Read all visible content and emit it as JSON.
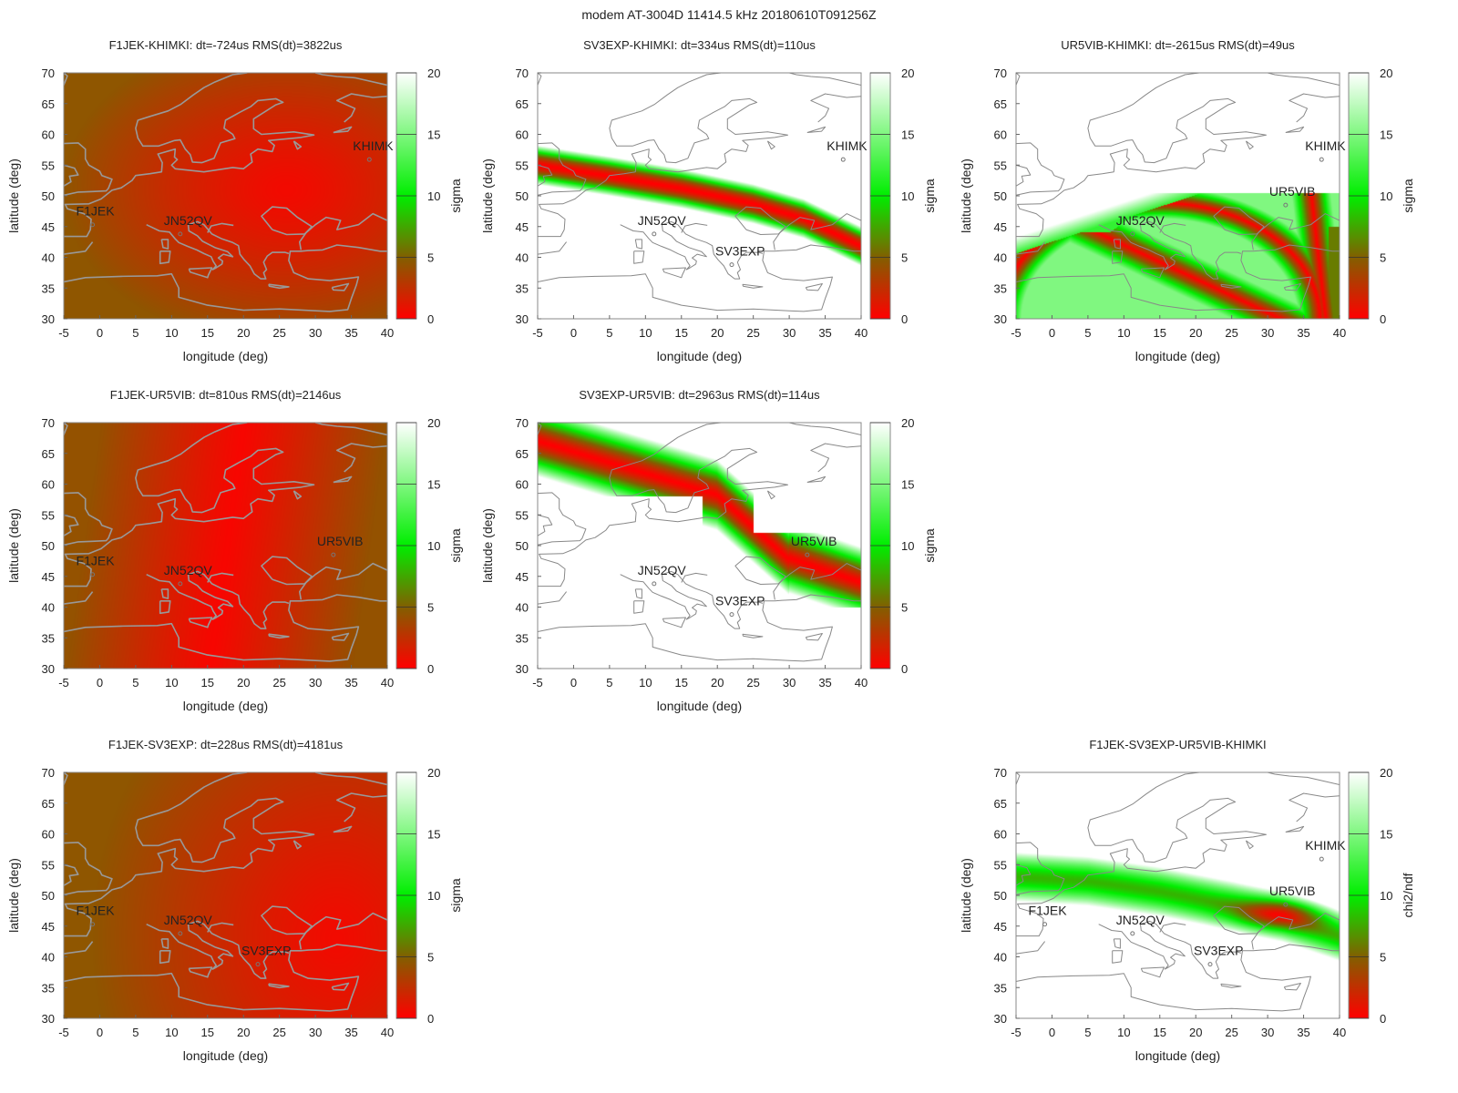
{
  "page": {
    "title": "modem AT-3004D 11414.5 kHz 20180610T091256Z"
  },
  "stations": {
    "F1JEK": {
      "lon": -1.0,
      "lat": 45.3
    },
    "JN52QV": {
      "lon": 11.2,
      "lat": 43.8
    },
    "SV3EXP": {
      "lon": 22.0,
      "lat": 38.8
    },
    "UR5VIB": {
      "lon": 32.5,
      "lat": 48.5
    },
    "KHIMKI": {
      "lon": 37.5,
      "lat": 55.9
    }
  },
  "colors": {
    "low": "#ff0000",
    "mid": "#00ee00",
    "high": "#ffffff",
    "coast": "#999999",
    "marker": "#777777"
  },
  "chart_data": [
    {
      "type": "heatmap",
      "id": "p11",
      "title": "F1JEK-KHIMKI:  dt=-724us RMS(dt)=3822us",
      "xlabel": "longitude (deg)",
      "ylabel": "latitude (deg)",
      "cblabel": "sigma",
      "xlim": [
        -5,
        40
      ],
      "ylim": [
        30,
        70
      ],
      "clim": [
        0,
        20
      ],
      "xticks": [
        "-5",
        "0",
        "5",
        "10",
        "15",
        "20",
        "25",
        "30",
        "35",
        "40"
      ],
      "yticks": [
        "30",
        "35",
        "40",
        "45",
        "50",
        "55",
        "60",
        "65",
        "70"
      ],
      "cticks": [
        "0",
        "5",
        "10",
        "15",
        "20"
      ],
      "labels": [
        "F1JEK",
        "JN52QV",
        "KHIMK"
      ],
      "markers": [
        "F1JEK",
        "JN52QV",
        "KHIMKI"
      ],
      "field": "broad",
      "coast": "gray"
    },
    {
      "type": "heatmap",
      "id": "p12",
      "title": "SV3EXP-KHIMKI:  dt=334us RMS(dt)=110us",
      "xlabel": "longitude (deg)",
      "ylabel": "latitude (deg)",
      "cblabel": "sigma",
      "xlim": [
        -5,
        40
      ],
      "ylim": [
        30,
        70
      ],
      "clim": [
        0,
        20
      ],
      "xticks": [
        "-5",
        "0",
        "5",
        "10",
        "15",
        "20",
        "25",
        "30",
        "35",
        "40"
      ],
      "yticks": [
        "30",
        "35",
        "40",
        "45",
        "50",
        "55",
        "60",
        "65",
        "70"
      ],
      "cticks": [
        "0",
        "5",
        "10",
        "15",
        "20"
      ],
      "labels": [
        "JN52QV",
        "SV3EXP",
        "KHIMK"
      ],
      "markers": [
        "JN52QV",
        "SV3EXP",
        "KHIMKI"
      ],
      "field": "band",
      "coast": "outline",
      "band": [
        [
          -5,
          55.0
        ],
        [
          5,
          53.2
        ],
        [
          15,
          51.2
        ],
        [
          25,
          48.7
        ],
        [
          32,
          46.3
        ],
        [
          40,
          41.8
        ]
      ],
      "band_halfwidth": 3.2
    },
    {
      "type": "heatmap",
      "id": "p13",
      "title": "UR5VIB-KHIMKI:  dt=-2615us RMS(dt)=49us",
      "xlabel": "longitude (deg)",
      "ylabel": "latitude (deg)",
      "cblabel": "sigma",
      "xlim": [
        -5,
        40
      ],
      "ylim": [
        30,
        70
      ],
      "clim": [
        0,
        20
      ],
      "xticks": [
        "-5",
        "0",
        "5",
        "10",
        "15",
        "20",
        "25",
        "30",
        "35",
        "40"
      ],
      "yticks": [
        "30",
        "35",
        "40",
        "45",
        "50",
        "55",
        "60",
        "65",
        "70"
      ],
      "cticks": [
        "0",
        "5",
        "10",
        "15",
        "20"
      ],
      "labels": [
        "JN52QV",
        "UR5VIB",
        "KHIMK"
      ],
      "markers": [
        "JN52QV",
        "UR5VIB",
        "KHIMKI"
      ],
      "field": "arch",
      "coast": "outline"
    },
    {
      "type": "heatmap",
      "id": "p21",
      "title": "F1JEK-UR5VIB:  dt=810us RMS(dt)=2146us",
      "xlabel": "longitude (deg)",
      "ylabel": "latitude (deg)",
      "cblabel": "sigma",
      "xlim": [
        -5,
        40
      ],
      "ylim": [
        30,
        70
      ],
      "clim": [
        0,
        20
      ],
      "xticks": [
        "-5",
        "0",
        "5",
        "10",
        "15",
        "20",
        "25",
        "30",
        "35",
        "40"
      ],
      "yticks": [
        "30",
        "35",
        "40",
        "45",
        "50",
        "55",
        "60",
        "65",
        "70"
      ],
      "cticks": [
        "0",
        "5",
        "10",
        "15",
        "20"
      ],
      "labels": [
        "F1JEK",
        "JN52QV",
        "UR5VIB"
      ],
      "markers": [
        "F1JEK",
        "JN52QV",
        "UR5VIB"
      ],
      "field": "broad",
      "coast": "gray"
    },
    {
      "type": "heatmap",
      "id": "p22",
      "title": "SV3EXP-UR5VIB:  dt=2963us RMS(dt)=114us",
      "xlabel": "longitude (deg)",
      "ylabel": "latitude (deg)",
      "cblabel": "sigma",
      "xlim": [
        -5,
        40
      ],
      "ylim": [
        30,
        70
      ],
      "clim": [
        0,
        20
      ],
      "xticks": [
        "-5",
        "0",
        "5",
        "10",
        "15",
        "20",
        "25",
        "30",
        "35",
        "40"
      ],
      "yticks": [
        "30",
        "35",
        "40",
        "45",
        "50",
        "55",
        "60",
        "65",
        "70"
      ],
      "cticks": [
        "0",
        "5",
        "10",
        "15",
        "20"
      ],
      "labels": [
        "JN52QV",
        "SV3EXP",
        "UR5VIB"
      ],
      "markers": [
        "JN52QV",
        "SV3EXP",
        "UR5VIB"
      ],
      "field": "swoosh",
      "coast": "outline"
    },
    {
      "type": "heatmap",
      "id": "p31",
      "title": "F1JEK-SV3EXP:  dt=228us RMS(dt)=4181us",
      "xlabel": "longitude (deg)",
      "ylabel": "latitude (deg)",
      "cblabel": "sigma",
      "xlim": [
        -5,
        40
      ],
      "ylim": [
        30,
        70
      ],
      "clim": [
        0,
        20
      ],
      "xticks": [
        "-5",
        "0",
        "5",
        "10",
        "15",
        "20",
        "25",
        "30",
        "35",
        "40"
      ],
      "yticks": [
        "30",
        "35",
        "40",
        "45",
        "50",
        "55",
        "60",
        "65",
        "70"
      ],
      "cticks": [
        "0",
        "5",
        "10",
        "15",
        "20"
      ],
      "labels": [
        "F1JEK",
        "JN52QV",
        "SV3EXP"
      ],
      "markers": [
        "F1JEK",
        "JN52QV",
        "SV3EXP"
      ],
      "field": "broad",
      "coast": "gray"
    },
    {
      "type": "heatmap",
      "id": "p33",
      "title": "F1JEK-SV3EXP-UR5VIB-KHIMKI",
      "xlabel": "longitude (deg)",
      "ylabel": "latitude (deg)",
      "cblabel": "chi2/ndf",
      "xlim": [
        -5,
        40
      ],
      "ylim": [
        30,
        70
      ],
      "clim": [
        0,
        20
      ],
      "xticks": [
        "-5",
        "0",
        "5",
        "10",
        "15",
        "20",
        "25",
        "30",
        "35",
        "40"
      ],
      "yticks": [
        "30",
        "35",
        "40",
        "45",
        "50",
        "55",
        "60",
        "65",
        "70"
      ],
      "cticks": [
        "0",
        "5",
        "10",
        "15",
        "20"
      ],
      "labels": [
        "F1JEK",
        "JN52QV",
        "SV3EXP",
        "UR5VIB",
        "KHIMK"
      ],
      "markers": [
        "F1JEK",
        "JN52QV",
        "SV3EXP",
        "UR5VIB",
        "KHIMKI"
      ],
      "field": "band",
      "coast": "outline",
      "band": [
        [
          -5,
          53.0
        ],
        [
          5,
          52.3
        ],
        [
          15,
          50.6
        ],
        [
          25,
          48.3
        ],
        [
          32,
          46.5
        ],
        [
          40,
          43.3
        ]
      ],
      "band_halfwidth": 5.5
    }
  ]
}
